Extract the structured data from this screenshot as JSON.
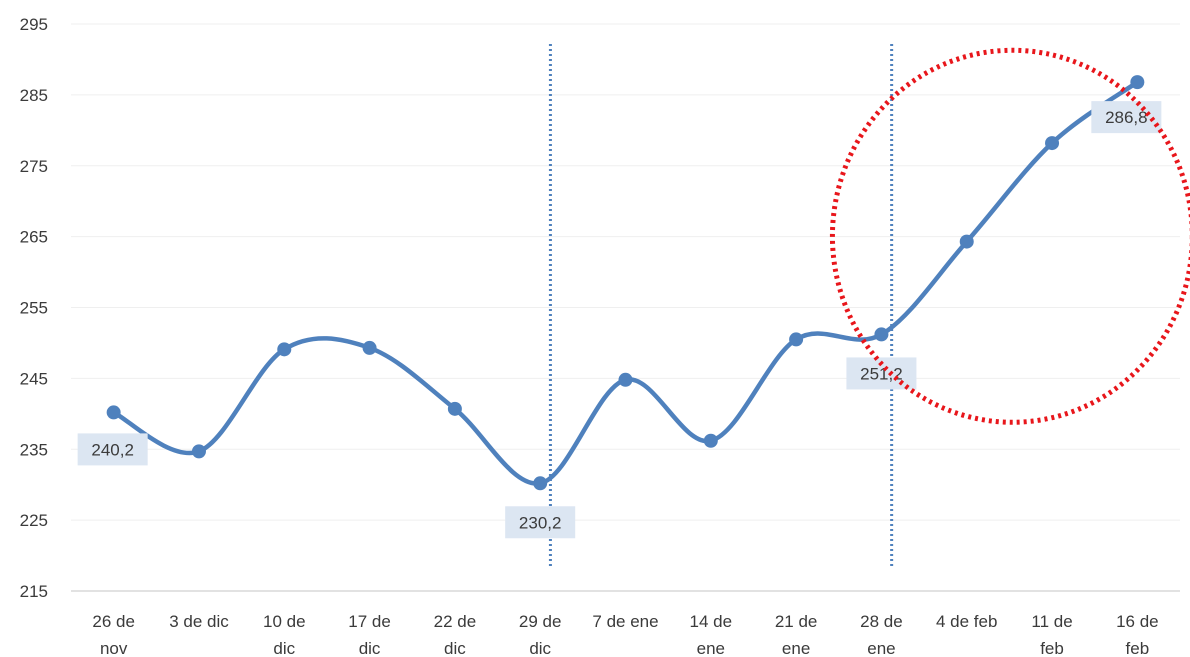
{
  "chart_data": {
    "type": "line",
    "categories": [
      [
        "26 de",
        "nov"
      ],
      [
        "3 de dic"
      ],
      [
        "10 de",
        "dic"
      ],
      [
        "17 de",
        "dic"
      ],
      [
        "22 de",
        "dic"
      ],
      [
        "29 de",
        "dic"
      ],
      [
        "7 de ene"
      ],
      [
        "14 de",
        "ene"
      ],
      [
        "21 de",
        "ene"
      ],
      [
        "28 de",
        "ene"
      ],
      [
        "4 de feb"
      ],
      [
        "11 de",
        "feb"
      ],
      [
        "16 de",
        "feb"
      ]
    ],
    "series": [
      {
        "values": [
          240.2,
          234.7,
          249.1,
          249.3,
          240.7,
          230.2,
          244.8,
          236.2,
          250.5,
          251.2,
          264.3,
          278.2,
          286.8
        ],
        "color": "#4f81bd"
      }
    ],
    "data_labels": [
      {
        "index": 0,
        "text": "240,2",
        "position": "below-left"
      },
      {
        "index": 5,
        "text": "230,2",
        "position": "below"
      },
      {
        "index": 9,
        "text": "251,2",
        "position": "below"
      },
      {
        "index": 12,
        "text": "286,8",
        "position": "below"
      }
    ],
    "y_ticks": [
      "295",
      "285",
      "275",
      "265",
      "255",
      "245",
      "235",
      "225",
      "215"
    ],
    "ylim": [
      215,
      295
    ],
    "grid": true,
    "smooth": true,
    "reference_lines": [
      {
        "after_index": 5,
        "style": "dotted",
        "color": "#4f81bd"
      },
      {
        "after_index": 9,
        "style": "dotted",
        "color": "#4f81bd"
      }
    ],
    "highlight": {
      "shape": "ellipse",
      "style": "dotted",
      "color": "#e8161b",
      "around_indices": [
        9,
        12
      ]
    },
    "label_background": "#dce6f2",
    "grid_color": "#efefef",
    "axis_color": "#d9d9d9"
  }
}
